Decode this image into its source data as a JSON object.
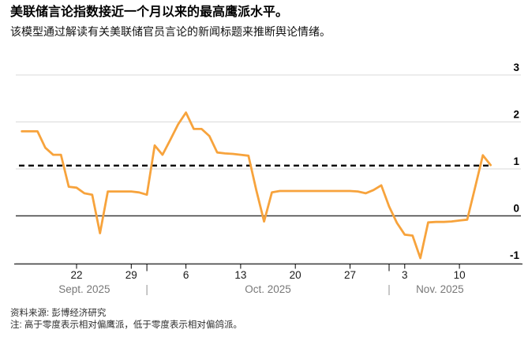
{
  "header": {
    "title": "美联储言论指数接近一个月以来的最高鹰派水平。",
    "subtitle": "该模型通过解读有关美联储官员言论的新闻标题来推断舆论情绪。"
  },
  "footer": {
    "source": "资料来源: 彭博经济研究",
    "note": "注: 高于零度表示相对偏鹰派，低于零度表示相对偏鸽派。"
  },
  "chart_data": {
    "type": "line",
    "title": "美联储言论指数",
    "grid": true,
    "legend": "none",
    "y_axis": {
      "side": "right",
      "ticks": [
        3,
        2,
        1,
        0,
        -1
      ],
      "ylim": [
        -1.4,
        3.3
      ]
    },
    "x_axis": {
      "start": "2025-09-15",
      "end": "2025-11-14",
      "week_ticks": [
        {
          "date": "2025-09-22",
          "label": "22"
        },
        {
          "date": "2025-09-29",
          "label": "29"
        },
        {
          "date": "2025-10-06",
          "label": "6"
        },
        {
          "date": "2025-10-13",
          "label": "13"
        },
        {
          "date": "2025-10-20",
          "label": "20"
        },
        {
          "date": "2025-10-27",
          "label": "27"
        },
        {
          "date": "2025-11-03",
          "label": "3"
        },
        {
          "date": "2025-11-10",
          "label": "10"
        }
      ],
      "month_sections": [
        {
          "label": "Sept. 2025",
          "start": "2025-09-15",
          "end": "2025-10-01"
        },
        {
          "label": "Oct. 2025",
          "start": "2025-10-01",
          "end": "2025-11-01"
        },
        {
          "label": "Nov. 2025",
          "start": "2025-11-01",
          "end": "2025-11-14"
        }
      ],
      "separator_glyph": "|"
    },
    "reference_line": {
      "name": "latest-level",
      "value": 1.07,
      "style": "dashed",
      "color": "#000000"
    },
    "zero_line": {
      "value": 0,
      "color": "#3a3a3a"
    },
    "series": [
      {
        "name": "美联储言论指数",
        "color": "#F7A33C",
        "points": [
          [
            "2025-09-15",
            1.8
          ],
          [
            "2025-09-16",
            1.8
          ],
          [
            "2025-09-17",
            1.8
          ],
          [
            "2025-09-18",
            1.45
          ],
          [
            "2025-09-19",
            1.3
          ],
          [
            "2025-09-20",
            1.3
          ],
          [
            "2025-09-21",
            0.62
          ],
          [
            "2025-09-22",
            0.6
          ],
          [
            "2025-09-23",
            0.48
          ],
          [
            "2025-09-24",
            0.45
          ],
          [
            "2025-09-25",
            -0.37
          ],
          [
            "2025-09-26",
            0.52
          ],
          [
            "2025-09-27",
            0.52
          ],
          [
            "2025-09-28",
            0.52
          ],
          [
            "2025-09-29",
            0.52
          ],
          [
            "2025-09-30",
            0.5
          ],
          [
            "2025-10-01",
            0.45
          ],
          [
            "2025-10-02",
            1.5
          ],
          [
            "2025-10-03",
            1.3
          ],
          [
            "2025-10-04",
            1.62
          ],
          [
            "2025-10-05",
            1.95
          ],
          [
            "2025-10-06",
            2.2
          ],
          [
            "2025-10-07",
            1.85
          ],
          [
            "2025-10-08",
            1.85
          ],
          [
            "2025-10-09",
            1.7
          ],
          [
            "2025-10-10",
            1.35
          ],
          [
            "2025-10-11",
            1.33
          ],
          [
            "2025-10-12",
            1.32
          ],
          [
            "2025-10-13",
            1.3
          ],
          [
            "2025-10-14",
            1.28
          ],
          [
            "2025-10-15",
            0.55
          ],
          [
            "2025-10-16",
            -0.12
          ],
          [
            "2025-10-17",
            0.5
          ],
          [
            "2025-10-18",
            0.53
          ],
          [
            "2025-10-19",
            0.53
          ],
          [
            "2025-10-20",
            0.53
          ],
          [
            "2025-10-21",
            0.53
          ],
          [
            "2025-10-22",
            0.53
          ],
          [
            "2025-10-23",
            0.53
          ],
          [
            "2025-10-24",
            0.53
          ],
          [
            "2025-10-25",
            0.53
          ],
          [
            "2025-10-26",
            0.53
          ],
          [
            "2025-10-27",
            0.53
          ],
          [
            "2025-10-28",
            0.52
          ],
          [
            "2025-10-29",
            0.48
          ],
          [
            "2025-10-30",
            0.55
          ],
          [
            "2025-10-31",
            0.65
          ],
          [
            "2025-11-01",
            0.2
          ],
          [
            "2025-11-02",
            -0.15
          ],
          [
            "2025-11-03",
            -0.4
          ],
          [
            "2025-11-04",
            -0.42
          ],
          [
            "2025-11-05",
            -0.9
          ],
          [
            "2025-11-06",
            -0.14
          ],
          [
            "2025-11-07",
            -0.13
          ],
          [
            "2025-11-08",
            -0.13
          ],
          [
            "2025-11-09",
            -0.12
          ],
          [
            "2025-11-10",
            -0.1
          ],
          [
            "2025-11-11",
            -0.08
          ],
          [
            "2025-11-12",
            0.6
          ],
          [
            "2025-11-13",
            1.29
          ],
          [
            "2025-11-14",
            1.08
          ]
        ]
      }
    ],
    "colors": {
      "line": "#F7A33C",
      "gridline": "#d9d9d9",
      "zero_line": "#3a3a3a",
      "axis": "#000000",
      "month_label": "#787878"
    }
  }
}
